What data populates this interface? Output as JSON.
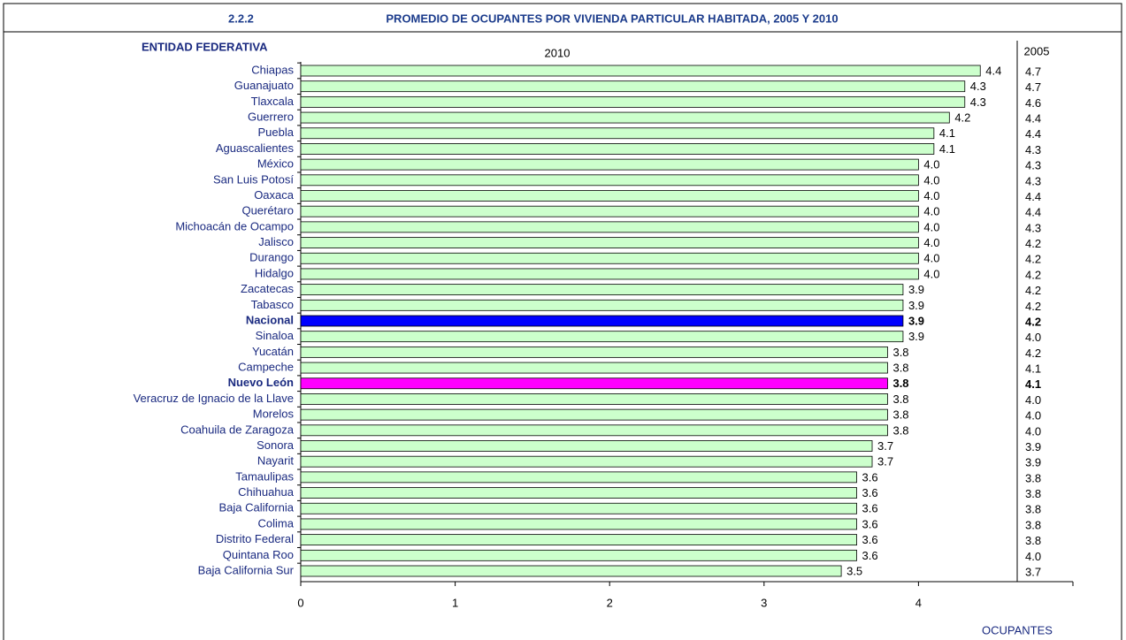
{
  "chart_data": {
    "type": "bar",
    "orientation": "horizontal",
    "number": "2.2.2",
    "title": "PROMEDIO DE OCUPANTES POR VIVIENDA PARTICULAR HABITADA, 2005 Y 2010",
    "category_header": "ENTIDAD FEDERATIVA",
    "xlabel": "OCUPANTES",
    "categories": [
      "Chiapas",
      "Guanajuato",
      "Tlaxcala",
      "Guerrero",
      "Puebla",
      "Aguascalientes",
      "México",
      "San Luis Potosí",
      "Oaxaca",
      "Querétaro",
      "Michoacán de Ocampo",
      "Jalisco",
      "Durango",
      "Hidalgo",
      "Zacatecas",
      "Tabasco",
      "Nacional",
      "Sinaloa",
      "Yucatán",
      "Campeche",
      "Nuevo León",
      "Veracruz de Ignacio de la Llave",
      "Morelos",
      "Coahuila de Zaragoza",
      "Sonora",
      "Nayarit",
      "Tamaulipas",
      "Chihuahua",
      "Baja California",
      "Colima",
      "Distrito Federal",
      "Quintana Roo",
      "Baja California Sur"
    ],
    "series": [
      {
        "name": "2010",
        "color": "#ccffcc",
        "colors": [
          "#ccffcc",
          "#ccffcc",
          "#ccffcc",
          "#ccffcc",
          "#ccffcc",
          "#ccffcc",
          "#ccffcc",
          "#ccffcc",
          "#ccffcc",
          "#ccffcc",
          "#ccffcc",
          "#ccffcc",
          "#ccffcc",
          "#ccffcc",
          "#ccffcc",
          "#ccffcc",
          "#0000ff",
          "#ccffcc",
          "#ccffcc",
          "#ccffcc",
          "#ff00ff",
          "#ccffcc",
          "#ccffcc",
          "#ccffcc",
          "#ccffcc",
          "#ccffcc",
          "#ccffcc",
          "#ccffcc",
          "#ccffcc",
          "#ccffcc",
          "#ccffcc",
          "#ccffcc",
          "#ccffcc"
        ],
        "values": [
          4.4,
          4.3,
          4.3,
          4.2,
          4.1,
          4.1,
          4,
          4,
          4,
          4,
          4,
          4,
          4,
          4,
          3.9,
          3.9,
          3.9,
          3.9,
          3.8,
          3.8,
          3.8,
          3.8,
          3.8,
          3.8,
          3.7,
          3.7,
          3.6,
          3.6,
          3.6,
          3.6,
          3.6,
          3.6,
          3.5
        ],
        "value_labels": [
          "4.4",
          "4.3",
          "4.3",
          "4.2",
          "4.1",
          "4.1",
          "4.0",
          "4.0",
          "4.0",
          "4.0",
          "4.0",
          "4.0",
          "4.0",
          "4.0",
          "3.9",
          "3.9",
          "3.9",
          "3.9",
          "3.8",
          "3.8",
          "3.8",
          "3.8",
          "3.8",
          "3.8",
          "3.7",
          "3.7",
          "3.6",
          "3.6",
          "3.6",
          "3.6",
          "3.6",
          "3.6",
          "3.5"
        ]
      }
    ],
    "column_2005": {
      "header": "2005",
      "values": [
        4.7,
        4.7,
        4.6,
        4.4,
        4.4,
        4.3,
        4.3,
        4.3,
        4.4,
        4.4,
        4.3,
        4.2,
        4.2,
        4.2,
        4.2,
        4.2,
        4.2,
        4,
        4.2,
        4.1,
        4.1,
        4,
        4,
        4,
        3.9,
        3.9,
        3.8,
        3.8,
        3.8,
        3.8,
        3.8,
        4,
        3.7
      ],
      "value_labels": [
        "4.7",
        "4.7",
        "4.6",
        "4.4",
        "4.4",
        "4.3",
        "4.3",
        "4.3",
        "4.4",
        "4.4",
        "4.3",
        "4.2",
        "4.2",
        "4.2",
        "4.2",
        "4.2",
        "4.2",
        "4.0",
        "4.2",
        "4.1",
        "4.1",
        "4.0",
        "4.0",
        "4.0",
        "3.9",
        "3.9",
        "3.8",
        "3.8",
        "3.8",
        "3.8",
        "3.8",
        "4.0",
        "3.7"
      ]
    },
    "xlim": [
      0,
      5
    ],
    "xticks": [
      0,
      1,
      2,
      3,
      4
    ]
  }
}
